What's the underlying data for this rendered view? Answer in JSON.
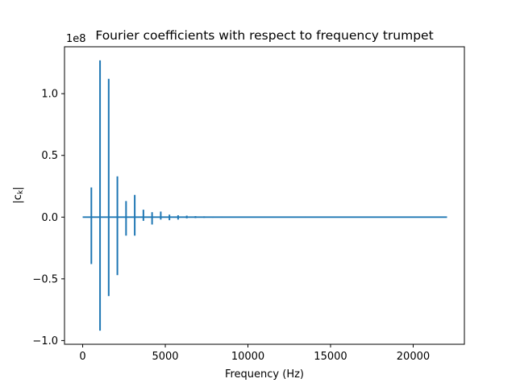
{
  "chart_data": {
    "type": "line",
    "title": "Fourier coefficients with respect to frequency trumpet",
    "xlabel": "Frequency (Hz)",
    "ylabel": "|c_k|",
    "ylabel_display": {
      "open": "|c",
      "sub": "k",
      "close": "|"
    },
    "y_offset_text": "1e8",
    "xlim": [
      -1100,
      23100
    ],
    "ylim": [
      -1.03,
      1.38
    ],
    "grid": false,
    "legend": "none",
    "x_ticks": [
      0,
      5000,
      10000,
      15000,
      20000
    ],
    "x_tick_labels": [
      "0",
      "5000",
      "10000",
      "15000",
      "20000"
    ],
    "y_ticks": [
      -1.0,
      -0.5,
      0.0,
      0.5,
      1.0
    ],
    "y_tick_labels": [
      "−1.0",
      "−0.5",
      "0.0",
      "0.5",
      "1.0"
    ],
    "series": [
      {
        "line_color": "#1f77b4",
        "x_range": [
          0,
          22050
        ],
        "baseline": 0.0,
        "spikes": [
          {
            "x": 525,
            "max": 0.24,
            "min": -0.38
          },
          {
            "x": 1050,
            "max": 1.27,
            "min": -0.92
          },
          {
            "x": 1575,
            "max": 1.12,
            "min": -0.64
          },
          {
            "x": 2100,
            "max": 0.33,
            "min": -0.47
          },
          {
            "x": 2625,
            "max": 0.13,
            "min": -0.15
          },
          {
            "x": 3150,
            "max": 0.18,
            "min": -0.15
          },
          {
            "x": 3675,
            "max": 0.06,
            "min": -0.03
          },
          {
            "x": 4200,
            "max": 0.04,
            "min": -0.06
          },
          {
            "x": 4725,
            "max": 0.045,
            "min": -0.02
          },
          {
            "x": 5250,
            "max": 0.02,
            "min": -0.025
          },
          {
            "x": 5775,
            "max": 0.015,
            "min": -0.02
          },
          {
            "x": 6300,
            "max": 0.012,
            "min": -0.01
          },
          {
            "x": 6825,
            "max": 0.008,
            "min": -0.008
          },
          {
            "x": 7350,
            "max": 0.006,
            "min": -0.006
          },
          {
            "x": 7875,
            "max": 0.005,
            "min": -0.005
          },
          {
            "x": 8400,
            "max": 0.004,
            "min": -0.004
          },
          {
            "x": 8925,
            "max": 0.003,
            "min": -0.003
          },
          {
            "x": 9450,
            "max": 0.002,
            "min": -0.002
          },
          {
            "x": 11000,
            "max": 0.003,
            "min": -0.003
          },
          {
            "x": 11500,
            "max": 0.002,
            "min": -0.002
          },
          {
            "x": 13000,
            "max": 0.002,
            "min": -0.002
          },
          {
            "x": 13500,
            "max": 0.002,
            "min": -0.002
          },
          {
            "x": 14200,
            "max": 0.002,
            "min": -0.002
          },
          {
            "x": 17200,
            "max": 0.002,
            "min": -0.002
          }
        ]
      }
    ]
  }
}
